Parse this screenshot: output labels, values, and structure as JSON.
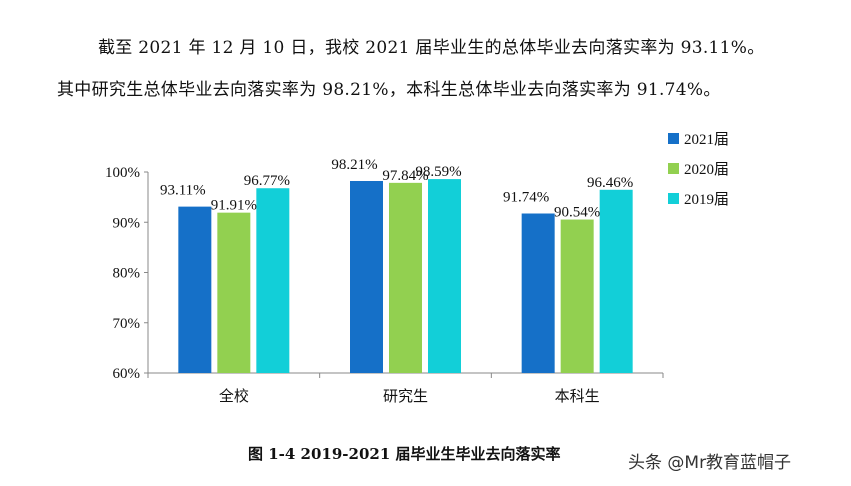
{
  "text": {
    "line1": "截至 2021 年 12 月 10 日，我校 2021 届毕业生的总体毕业去向落实率为 93.11%。",
    "line2": "其中研究生总体毕业去向落实率为 98.21%，本科生总体毕业去向落实率为 91.74%。",
    "caption": "图 1-4    2019-2021 届毕业生毕业去向落实率",
    "watermark": "头条 @Mr教育蓝帽子"
  },
  "chart_data": {
    "type": "bar",
    "categories": [
      "全校",
      "研究生",
      "本科生"
    ],
    "series": [
      {
        "name": "2021届",
        "values": [
          93.11,
          98.21,
          91.74
        ],
        "labels": [
          "93.11%",
          "98.21%",
          "91.74%"
        ],
        "color": "#1570c8"
      },
      {
        "name": "2020届",
        "values": [
          91.91,
          97.84,
          90.54
        ],
        "labels": [
          "91.91%",
          "97.84%",
          "90.54%"
        ],
        "color": "#92d050"
      },
      {
        "name": "2019届",
        "values": [
          96.77,
          98.59,
          96.46
        ],
        "labels": [
          "96.77%",
          "98.59%",
          "96.46%"
        ],
        "color": "#12cfd8"
      }
    ],
    "ylim": [
      60,
      100
    ],
    "yticks": [
      "60%",
      "70%",
      "80%",
      "90%",
      "100%"
    ],
    "ytick_values": [
      60,
      70,
      80,
      90,
      100
    ],
    "grid": false,
    "legend_position": "right",
    "title": "",
    "xlabel": "",
    "ylabel": ""
  }
}
